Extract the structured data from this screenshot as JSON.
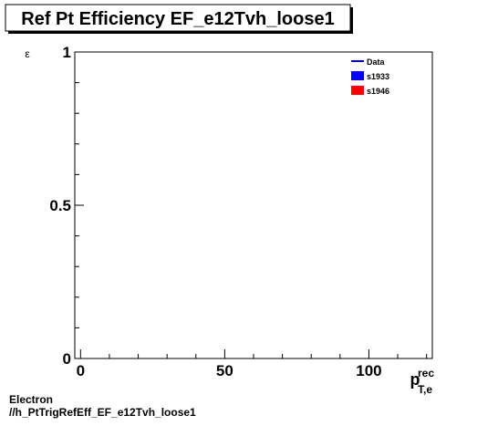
{
  "chart_data": {
    "type": "line",
    "title": "Ref Pt Efficiency EF_e12Tvh_loose1",
    "ylabel": "ε",
    "xlabel_main": "p",
    "xlabel_sup": "rec",
    "xlabel_sub": "T,e",
    "xlim": [
      -2,
      122
    ],
    "ylim": [
      0,
      1
    ],
    "x_ticks": [
      0,
      50,
      100
    ],
    "x_tick_labels": [
      "0",
      "50",
      "100"
    ],
    "y_ticks": [
      0,
      0.5,
      1
    ],
    "y_tick_labels": [
      "0",
      "0.5",
      "1"
    ],
    "grid": false,
    "legend_position": "top-right",
    "legend": [
      {
        "label": "Data",
        "style": "line",
        "color": "#0000cc"
      },
      {
        "label": "s1933",
        "style": "box",
        "color": "#0000ff"
      },
      {
        "label": "s1946",
        "style": "box",
        "color": "#ff0000"
      }
    ],
    "series": []
  },
  "footer": {
    "line1": "Electron",
    "line2": "//h_PtTrigRefEff_EF_e12Tvh_loose1"
  }
}
